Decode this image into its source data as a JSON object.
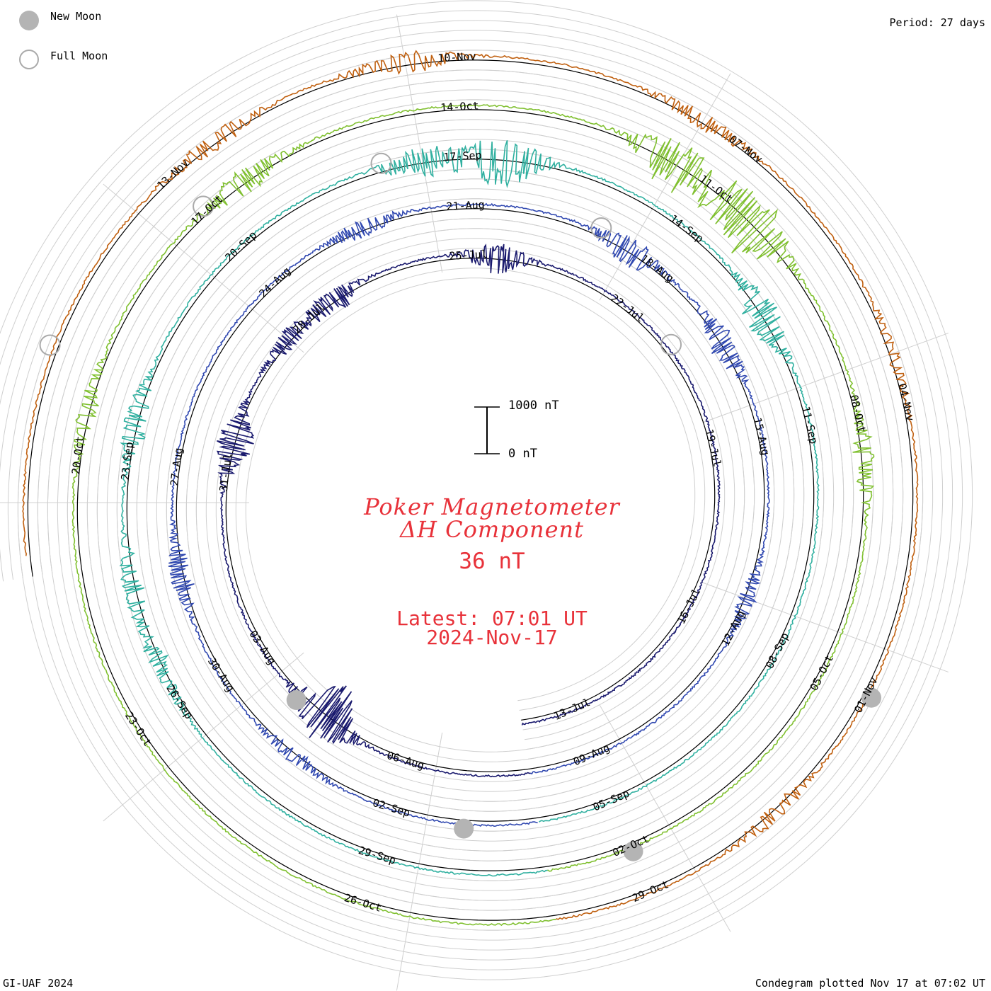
{
  "header": {
    "period_label": "Period: 27 days"
  },
  "legend": {
    "new_moon_label": "New Moon",
    "full_moon_label": "Full Moon",
    "new_moon_color": "#b4b4b4",
    "full_moon_color": "#aaaaaa"
  },
  "title": {
    "line1": "Poker Magnetometer",
    "line2": "ΔH Component",
    "baseline": "36 nT",
    "latest": "Latest: 07:01 UT",
    "date": "2024-Nov-17",
    "color": "#e8323a"
  },
  "scale_bar": {
    "top_label": "1000 nT",
    "bottom_label": "0 nT"
  },
  "footer": {
    "left": "GI-UAF 2024",
    "right": "Condegram plotted Nov 17 at 07:02 UT"
  },
  "chart_data": {
    "type": "line",
    "subtype": "condegram (spiral time series)",
    "period_days": 27,
    "start_date": "2024-07-12",
    "end_date": "2024-11-17",
    "y_scale_reference": [
      0,
      1000
    ],
    "grid": true,
    "date_labels": [
      "13-Jul",
      "16-Jul",
      "19-Jul",
      "22-Jul",
      "25-Jul",
      "28-Jul",
      "31-Jul",
      "03-Aug",
      "06-Aug",
      "09-Aug",
      "12-Aug",
      "15-Aug",
      "18-Aug",
      "21-Aug",
      "24-Aug",
      "27-Aug",
      "30-Aug",
      "02-Sep",
      "05-Sep",
      "08-Sep",
      "11-Sep",
      "14-Sep",
      "17-Sep",
      "20-Sep",
      "23-Sep",
      "26-Sep",
      "29-Sep",
      "02-Oct",
      "05-Oct",
      "08-Oct",
      "11-Oct",
      "14-Oct",
      "17-Oct",
      "20-Oct",
      "23-Oct",
      "26-Oct",
      "29-Oct",
      "01-Nov",
      "04-Nov",
      "07-Nov",
      "10-Nov",
      "13-Nov"
    ],
    "new_moons": [
      "2024-08-04",
      "2024-09-03",
      "2024-10-02",
      "2024-11-01"
    ],
    "full_moons": [
      "2024-07-21",
      "2024-08-19",
      "2024-09-18",
      "2024-10-17",
      "2024-11-15"
    ],
    "series": [
      {
        "start": "2024-07-12",
        "end": "2024-08-08",
        "color": "#1a1a6e",
        "disturbances": [
          {
            "date": "2024-07-24",
            "peak": 420
          },
          {
            "date": "2024-07-27",
            "peak": 380
          },
          {
            "date": "2024-07-28",
            "peak": 300
          },
          {
            "date": "2024-07-30",
            "peak": 520
          },
          {
            "date": "2024-08-04",
            "peak": 900
          }
        ]
      },
      {
        "start": "2024-08-08",
        "end": "2024-09-04",
        "color": "#3048b0",
        "disturbances": [
          {
            "date": "2024-08-12",
            "peak": 250
          },
          {
            "date": "2024-08-16",
            "peak": 380
          },
          {
            "date": "2024-08-18",
            "peak": 420
          },
          {
            "date": "2024-08-22",
            "peak": 260
          },
          {
            "date": "2024-08-28",
            "peak": 320
          },
          {
            "date": "2024-08-31",
            "peak": 200
          }
        ]
      },
      {
        "start": "2024-09-04",
        "end": "2024-10-01",
        "color": "#30b0a0",
        "disturbances": [
          {
            "date": "2024-09-12",
            "peak": 480
          },
          {
            "date": "2024-09-16",
            "peak": 700
          },
          {
            "date": "2024-09-17",
            "peak": 420
          },
          {
            "date": "2024-09-22",
            "peak": 380
          },
          {
            "date": "2024-09-24",
            "peak": 300
          },
          {
            "date": "2024-09-25",
            "peak": 260
          }
        ]
      },
      {
        "start": "2024-10-01",
        "end": "2024-10-28",
        "color": "#80c030",
        "disturbances": [
          {
            "date": "2024-10-07",
            "peak": 300
          },
          {
            "date": "2024-10-10",
            "peak": 950
          },
          {
            "date": "2024-10-11",
            "peak": 700
          },
          {
            "date": "2024-10-16",
            "peak": 360
          },
          {
            "date": "2024-10-19",
            "peak": 260
          }
        ]
      },
      {
        "start": "2024-10-28",
        "end": "2024-11-17",
        "color": "#c06010",
        "disturbances": [
          {
            "date": "2024-10-30",
            "peak": 220
          },
          {
            "date": "2024-11-04",
            "peak": 160
          },
          {
            "date": "2024-11-07",
            "peak": 240
          },
          {
            "date": "2024-11-10",
            "peak": 320
          },
          {
            "date": "2024-11-12",
            "peak": 260
          }
        ]
      }
    ]
  }
}
